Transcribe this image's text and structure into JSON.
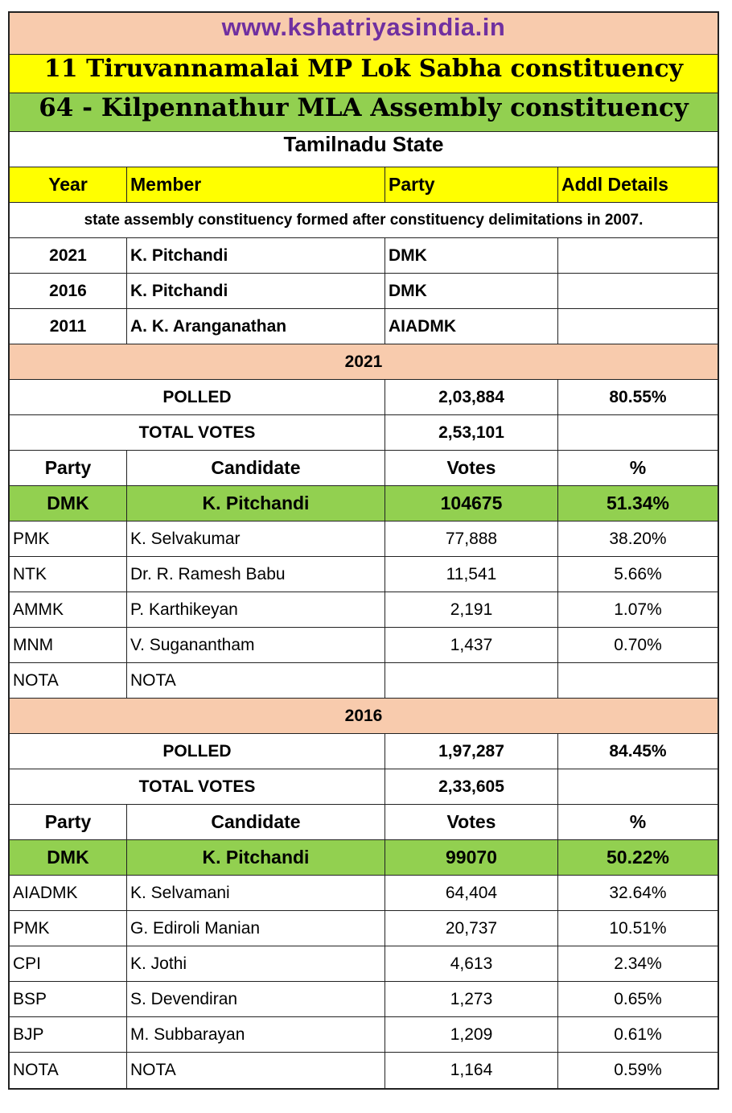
{
  "header": {
    "site": "www.kshatriyasindia.in",
    "mp_title": "11 Tiruvannamalai MP Lok Sabha constituency",
    "mla_title": "64 - Kilpennathur MLA Assembly constituency",
    "state": "Tamilnadu State"
  },
  "members_table": {
    "columns": [
      "Year",
      "Member",
      "Party",
      "Addl Details"
    ],
    "note": "state assembly constituency formed after constituency delimitations in 2007.",
    "rows": [
      {
        "year": "2021",
        "member": "K. Pitchandi",
        "party": "DMK",
        "details": ""
      },
      {
        "year": "2016",
        "member": "K. Pitchandi",
        "party": "DMK",
        "details": ""
      },
      {
        "year": "2011",
        "member": "A. K. Aranganathan",
        "party": "AIADMK",
        "details": ""
      }
    ]
  },
  "elections": [
    {
      "year": "2021",
      "polled_label": "POLLED",
      "polled": "2,03,884",
      "polled_pct": "80.55%",
      "total_label": "TOTAL VOTES",
      "total": "2,53,101",
      "columns": [
        "Party",
        "Candidate",
        "Votes",
        "%"
      ],
      "winner": {
        "party": "DMK",
        "candidate": "K. Pitchandi",
        "votes": "104675",
        "pct": "51.34%"
      },
      "others": [
        {
          "party": "PMK",
          "candidate": "K. Selvakumar",
          "votes": "77,888",
          "pct": "38.20%"
        },
        {
          "party": "NTK",
          "candidate": "Dr. R. Ramesh Babu",
          "votes": "11,541",
          "pct": "5.66%"
        },
        {
          "party": "AMMK",
          "candidate": "P. Karthikeyan",
          "votes": "2,191",
          "pct": "1.07%"
        },
        {
          "party": "MNM",
          "candidate": "V. Suganantham",
          "votes": "1,437",
          "pct": "0.70%"
        },
        {
          "party": "NOTA",
          "candidate": "NOTA",
          "votes": "",
          "pct": ""
        }
      ]
    },
    {
      "year": "2016",
      "polled_label": "POLLED",
      "polled": "1,97,287",
      "polled_pct": "84.45%",
      "total_label": "TOTAL VOTES",
      "total": "2,33,605",
      "columns": [
        "Party",
        "Candidate",
        "Votes",
        "%"
      ],
      "winner": {
        "party": "DMK",
        "candidate": "K. Pitchandi",
        "votes": "99070",
        "pct": "50.22%"
      },
      "others": [
        {
          "party": "AIADMK",
          "candidate": "K. Selvamani",
          "votes": "64,404",
          "pct": "32.64%"
        },
        {
          "party": "PMK",
          "candidate": "G. Ediroli Manian",
          "votes": "20,737",
          "pct": "10.51%"
        },
        {
          "party": "CPI",
          "candidate": "K. Jothi",
          "votes": "4,613",
          "pct": "2.34%"
        },
        {
          "party": "BSP",
          "candidate": "S. Devendiran",
          "votes": "1,273",
          "pct": "0.65%"
        },
        {
          "party": "BJP",
          "candidate": "M. Subbarayan",
          "votes": "1,209",
          "pct": "0.61%"
        },
        {
          "party": "NOTA",
          "candidate": "NOTA",
          "votes": "1,164",
          "pct": "0.59%"
        }
      ]
    }
  ]
}
